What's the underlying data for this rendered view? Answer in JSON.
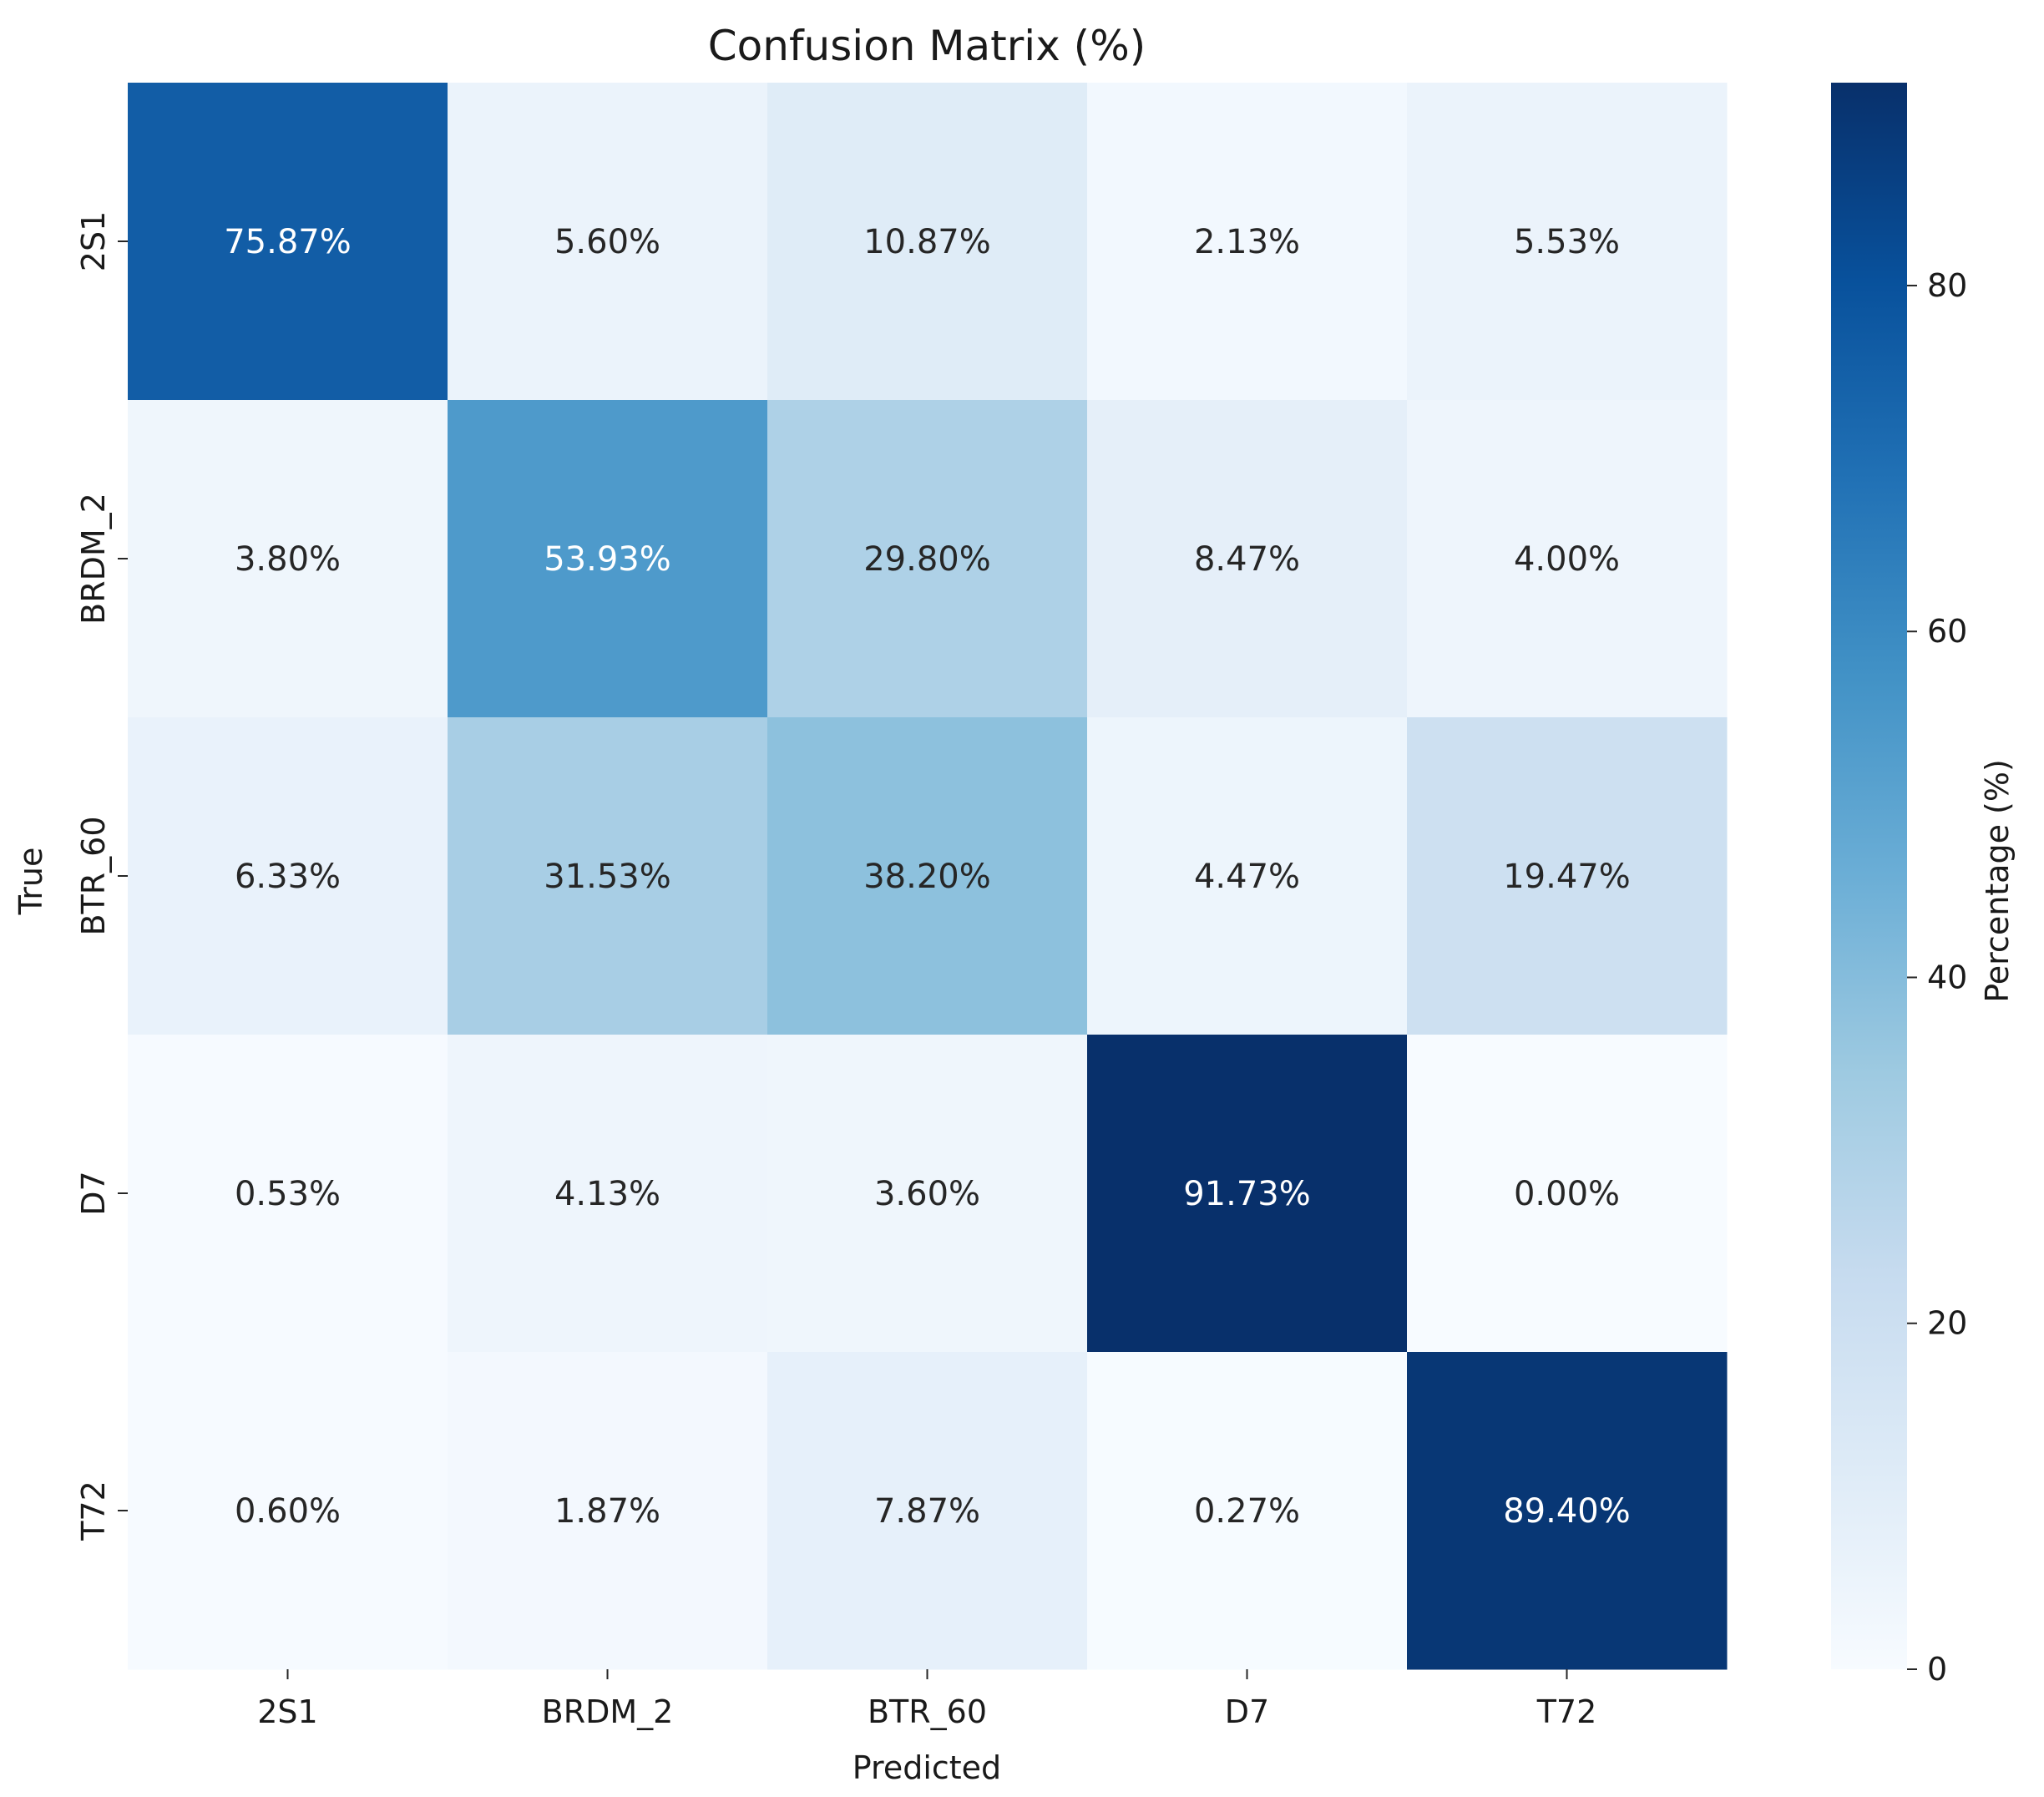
{
  "chart_data": {
    "type": "heatmap",
    "title": "Confusion Matrix (%)",
    "xlabel": "Predicted",
    "ylabel": "True",
    "x_categories": [
      "2S1",
      "BRDM_2",
      "BTR_60",
      "D7",
      "T72"
    ],
    "y_categories": [
      "2S1",
      "BRDM_2",
      "BTR_60",
      "D7",
      "T72"
    ],
    "values": [
      [
        75.87,
        5.6,
        10.87,
        2.13,
        5.53
      ],
      [
        3.8,
        53.93,
        29.8,
        8.47,
        4.0
      ],
      [
        6.33,
        31.53,
        38.2,
        4.47,
        19.47
      ],
      [
        0.53,
        4.13,
        3.6,
        91.73,
        0.0
      ],
      [
        0.6,
        1.87,
        7.87,
        0.27,
        89.4
      ]
    ],
    "cell_labels": [
      [
        "75.87%",
        "5.60%",
        "10.87%",
        "2.13%",
        "5.53%"
      ],
      [
        "3.80%",
        "53.93%",
        "29.80%",
        "8.47%",
        "4.00%"
      ],
      [
        "6.33%",
        "31.53%",
        "38.20%",
        "4.47%",
        "19.47%"
      ],
      [
        "0.53%",
        "4.13%",
        "3.60%",
        "91.73%",
        "0.00%"
      ],
      [
        "0.60%",
        "1.87%",
        "7.87%",
        "0.27%",
        "89.40%"
      ]
    ],
    "colormap": "Blues",
    "colormap_stops": [
      "#f7fbff",
      "#deebf7",
      "#c6dbef",
      "#9ecae1",
      "#6baed6",
      "#4292c6",
      "#2171b5",
      "#08519c",
      "#08306b"
    ],
    "vmin": 0,
    "vmax": 91.73,
    "colorbar": {
      "label": "Percentage (%)",
      "ticks": [
        0,
        20,
        40,
        60,
        80
      ],
      "tick_labels": [
        "0",
        "20",
        "40",
        "60",
        "80"
      ]
    }
  }
}
